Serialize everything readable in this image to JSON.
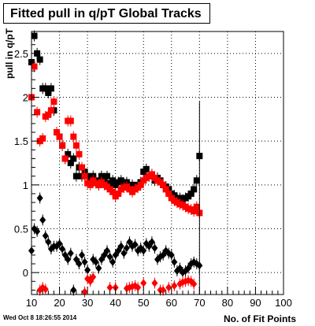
{
  "title": "Fitted pull in q/pT  Global Tracks",
  "timestamp": "Wed Oct  8 18:26:55 2014",
  "chart_data": {
    "type": "scatter",
    "title": "Fitted pull in q/pT  Global Tracks",
    "xlabel": "No. of Fit Points",
    "ylabel": "pull in q/pT",
    "xlim": [
      10,
      100
    ],
    "ylim": [
      -0.25,
      2.75
    ],
    "x_ticks": [
      10,
      20,
      30,
      40,
      50,
      60,
      70,
      80,
      90,
      100
    ],
    "y_ticks": [
      0,
      0.5,
      1,
      1.5,
      2,
      2.5
    ],
    "grid": true,
    "series": [
      {
        "color": "#000000",
        "marker": "square",
        "x": [
          10,
          11,
          12,
          13,
          14,
          15,
          16,
          17,
          18,
          19,
          20,
          21,
          22,
          23,
          24,
          25,
          26,
          27,
          28,
          29,
          30,
          31,
          32,
          33,
          34,
          35,
          36,
          37,
          38,
          39,
          40,
          41,
          42,
          43,
          44,
          45,
          46,
          47,
          48,
          49,
          50,
          51,
          52,
          53,
          54,
          55,
          56,
          57,
          58,
          59,
          60,
          61,
          62,
          63,
          64,
          65,
          66,
          67,
          68,
          69,
          70
        ],
        "y": [
          2.4,
          2.7,
          2.5,
          2.43,
          2.1,
          2.1,
          2.05,
          2.1,
          1.85,
          1.6,
          1.55,
          1.45,
          1.3,
          1.35,
          1.25,
          1.3,
          1.1,
          1.2,
          1.1,
          1.15,
          1.1,
          1.05,
          1.1,
          1.05,
          1.0,
          1.1,
          1.05,
          1.1,
          1.02,
          1.05,
          1.0,
          1.03,
          1.05,
          1.0,
          1.03,
          0.97,
          1.0,
          0.97,
          1.0,
          1.03,
          1.15,
          1.18,
          1.1,
          1.12,
          1.05,
          1.08,
          1.05,
          1.0,
          0.98,
          0.95,
          0.9,
          0.88,
          0.85,
          0.85,
          0.83,
          0.85,
          0.87,
          0.9,
          0.95,
          1.05,
          1.33
        ]
      },
      {
        "color": "#ff0000",
        "marker": "square",
        "x": [
          10,
          11,
          12,
          13,
          14,
          15,
          16,
          17,
          18,
          19,
          20,
          21,
          22,
          23,
          24,
          25,
          26,
          27,
          28,
          29,
          30,
          31,
          32,
          33,
          34,
          35,
          36,
          37,
          38,
          39,
          40,
          41,
          42,
          43,
          44,
          45,
          46,
          47,
          48,
          49,
          50,
          51,
          52,
          53,
          54,
          55,
          56,
          57,
          58,
          59,
          60,
          61,
          62,
          63,
          64,
          65,
          66,
          67,
          68,
          69,
          70
        ],
        "y": [
          2.0,
          2.35,
          1.83,
          1.5,
          1.53,
          1.78,
          1.8,
          1.85,
          1.95,
          1.6,
          1.55,
          1.45,
          1.3,
          1.73,
          1.73,
          1.55,
          1.45,
          1.35,
          1.2,
          1.1,
          1.02,
          1.0,
          1.05,
          1.02,
          1.0,
          1.03,
          1.0,
          0.98,
          0.95,
          0.92,
          0.87,
          0.9,
          0.95,
          0.97,
          0.98,
          0.95,
          0.92,
          0.95,
          0.97,
          1.0,
          1.05,
          1.08,
          1.1,
          1.12,
          1.08,
          1.05,
          1.03,
          1.0,
          0.95,
          0.9,
          0.85,
          0.82,
          0.8,
          0.78,
          0.77,
          0.75,
          0.73,
          0.72,
          0.7,
          0.75,
          0.68
        ]
      },
      {
        "color": "#000000",
        "marker": "diamond",
        "x": [
          10,
          11,
          12,
          13,
          14,
          15,
          16,
          17,
          18,
          19,
          20,
          21,
          22,
          23,
          24,
          25,
          26,
          27,
          28,
          29,
          30,
          31,
          32,
          33,
          34,
          35,
          36,
          37,
          38,
          39,
          40,
          41,
          42,
          43,
          44,
          45,
          46,
          47,
          48,
          49,
          50,
          51,
          52,
          53,
          54,
          55,
          56,
          57,
          58,
          59,
          60,
          61,
          62,
          63,
          64,
          65,
          66,
          67,
          68,
          69,
          70
        ],
        "y": [
          0.25,
          0.5,
          0.47,
          0.85,
          0.6,
          0.42,
          0.35,
          0.27,
          0.3,
          0.3,
          0.33,
          0.27,
          0.2,
          0.15,
          0.22,
          -0.2,
          0.15,
          0.1,
          0.2,
          0.12,
          0.03,
          -0.08,
          0.15,
          0.12,
          0.05,
          0.15,
          0.2,
          0.25,
          0.18,
          0.12,
          0.2,
          0.25,
          0.3,
          0.22,
          0.28,
          0.35,
          0.3,
          0.32,
          0.25,
          0.28,
          0.25,
          0.33,
          0.3,
          0.35,
          0.28,
          0.15,
          0.18,
          0.2,
          0.25,
          0.22,
          0.2,
          0.12,
          0.02,
          0.05,
          0.0,
          0.02,
          0.05,
          0.1,
          0.12,
          0.1,
          0.08
        ]
      },
      {
        "color": "#ff0000",
        "marker": "diamond",
        "x": [
          13,
          14,
          15,
          29,
          30,
          31,
          32,
          38,
          40,
          44,
          45,
          46,
          47,
          48,
          50,
          54,
          56,
          57,
          59,
          61,
          63,
          64,
          65,
          66,
          67,
          68
        ],
        "y": [
          -0.2,
          -0.17,
          -0.19,
          -0.22,
          -0.07,
          -0.1,
          -0.05,
          -0.17,
          -0.17,
          -0.18,
          -0.17,
          -0.16,
          -0.15,
          -0.17,
          -0.12,
          -0.12,
          -0.2,
          -0.2,
          -0.17,
          -0.15,
          -0.13,
          -0.11,
          -0.1,
          -0.09,
          -0.1,
          -0.13
        ]
      }
    ]
  }
}
